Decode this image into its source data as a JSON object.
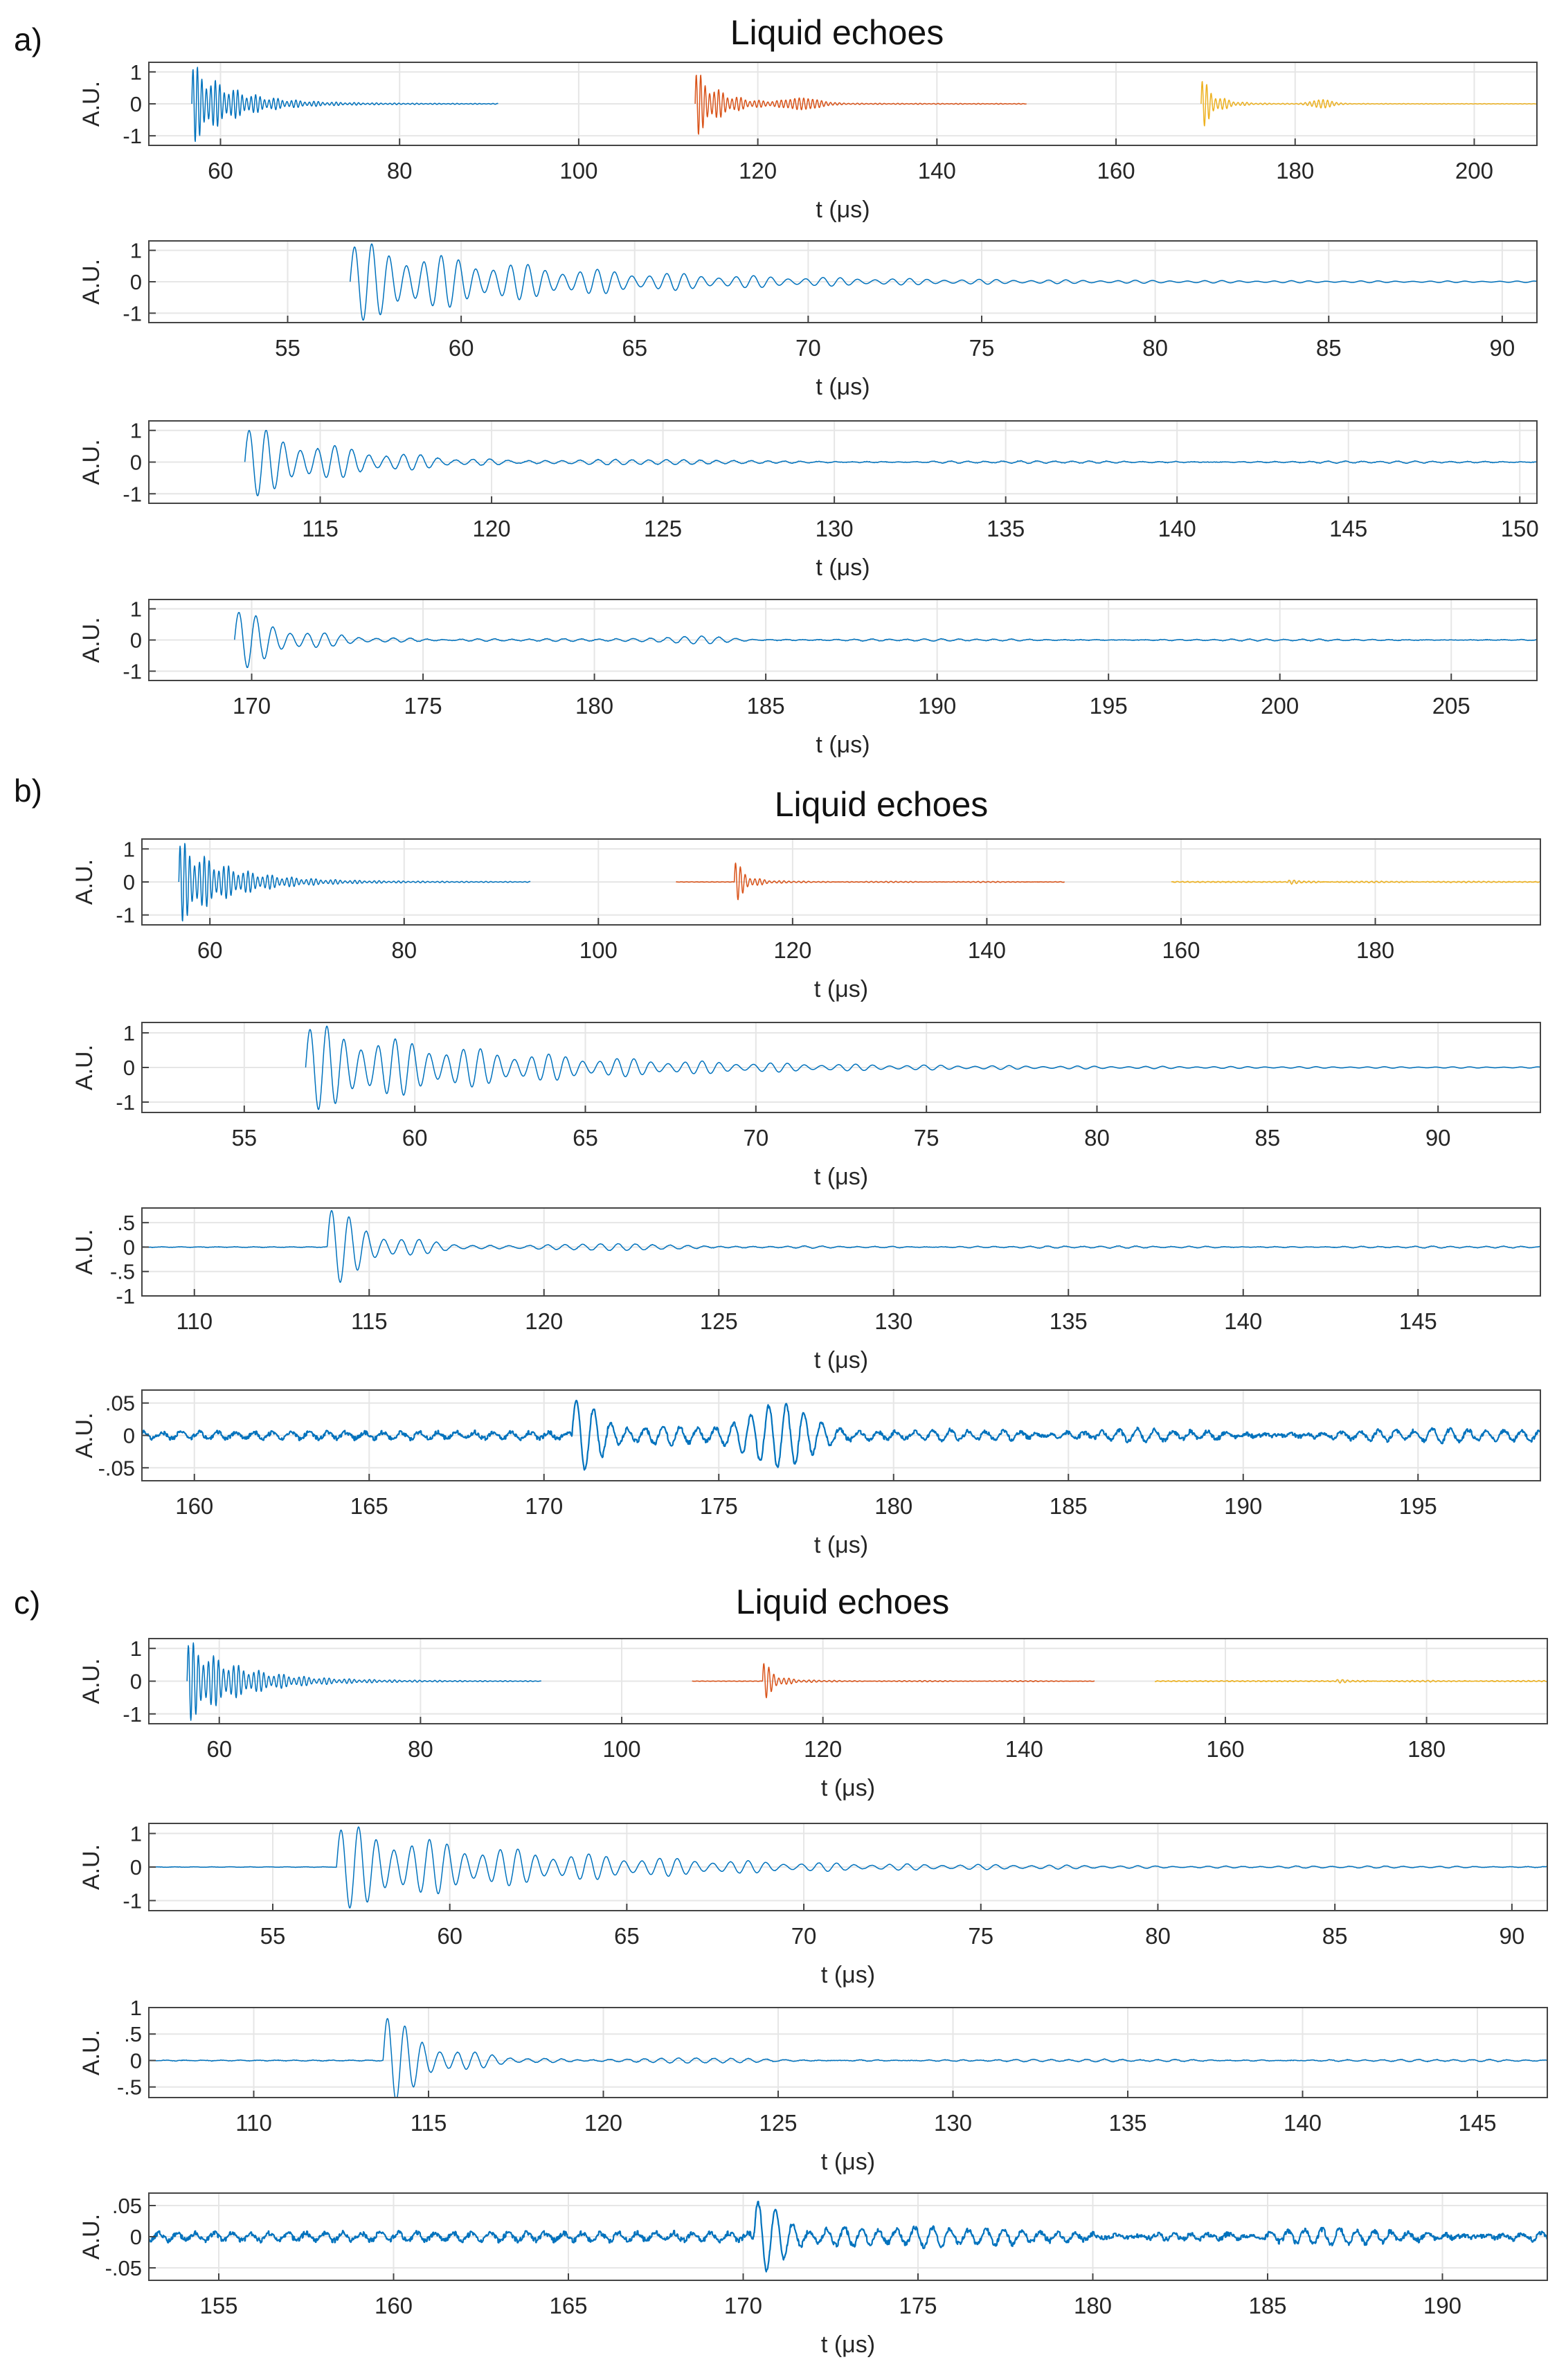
{
  "figure": {
    "panels": [
      {
        "label": "a)",
        "title": "Liquid echoes"
      },
      {
        "label": "b)",
        "title": "Liquid echoes"
      },
      {
        "label": "c)",
        "title": "Liquid echoes"
      }
    ]
  },
  "colors": {
    "echo1": "#0072BD",
    "echo2": "#D95319",
    "echo3": "#EDB120",
    "axis": "#262626",
    "grid": "#e6e6e6",
    "frame": "#444444"
  },
  "chart_data": [
    {
      "type": "line",
      "panel": "a",
      "xlabel": "t (μs)",
      "ylabel": "A.U.",
      "xlim": [
        52,
        207
      ],
      "ylim": [
        -1.3,
        1.3
      ],
      "xticks": [
        60,
        80,
        100,
        120,
        140,
        160,
        180,
        200
      ],
      "yticks": [
        1,
        0,
        -1
      ],
      "series": [
        {
          "color": "echo1",
          "start": 56.8,
          "end": 91,
          "amp": 1.3,
          "decay": 4.5,
          "freq": 2.0,
          "floor": 0.03,
          "noise": 0.0,
          "bursts": [],
          "width": 1.5
        },
        {
          "color": "echo2",
          "start": 113,
          "end": 150,
          "amp": 1.1,
          "decay": 2.8,
          "freq": 2.0,
          "floor": 0.03,
          "noise": 0.0,
          "bursts": [
            {
              "c": 125,
              "a": 0.15,
              "w": 2.5
            }
          ],
          "width": 1.5
        },
        {
          "color": "echo3",
          "start": 169.5,
          "end": 207,
          "amp": 0.9,
          "decay": 1.5,
          "freq": 2.0,
          "floor": 0.02,
          "noise": 0.0,
          "bursts": [
            {
              "c": 183,
              "a": 0.12,
              "w": 1.5
            }
          ],
          "width": 1.5
        }
      ]
    },
    {
      "type": "line",
      "panel": "a",
      "xlabel": "t (μs)",
      "ylabel": "A.U.",
      "xlim": [
        51,
        91
      ],
      "ylim": [
        -1.3,
        1.3
      ],
      "xticks": [
        55,
        60,
        65,
        70,
        75,
        80,
        85,
        90
      ],
      "yticks": [
        1,
        0,
        -1
      ],
      "series": [
        {
          "color": "echo1",
          "start": 56.8,
          "end": 91,
          "amp": 1.3,
          "decay": 5.5,
          "freq": 2.0,
          "floor": 0.05,
          "noise": 0.0,
          "bursts": [],
          "width": 1.5
        }
      ]
    },
    {
      "type": "line",
      "panel": "a",
      "xlabel": "t (μs)",
      "ylabel": "A.U.",
      "xlim": [
        110,
        150.5
      ],
      "ylim": [
        -1.3,
        1.3
      ],
      "xticks": [
        115,
        120,
        125,
        130,
        135,
        140,
        145,
        150
      ],
      "yticks": [
        1,
        0,
        -1
      ],
      "series": [
        {
          "color": "echo1",
          "start": 112.8,
          "end": 150.5,
          "amp": 1.2,
          "decay": 2.8,
          "freq": 2.0,
          "floor": 0.05,
          "noise": 0.02,
          "bursts": [
            {
              "c": 124,
              "a": 0.12,
              "w": 4
            }
          ],
          "width": 1.5
        }
      ]
    },
    {
      "type": "line",
      "panel": "a",
      "xlabel": "t (μs)",
      "ylabel": "A.U.",
      "xlim": [
        167,
        207.5
      ],
      "ylim": [
        -1.3,
        1.3
      ],
      "xticks": [
        170,
        175,
        180,
        185,
        190,
        195,
        200,
        205
      ],
      "yticks": [
        1,
        0,
        -1
      ],
      "series": [
        {
          "color": "echo1",
          "start": 169.5,
          "end": 207.5,
          "amp": 1.1,
          "decay": 1.5,
          "freq": 2.0,
          "floor": 0.04,
          "noise": 0.02,
          "bursts": [
            {
              "c": 183,
              "a": 0.1,
              "w": 1.2
            }
          ],
          "width": 1.5
        }
      ]
    },
    {
      "type": "line",
      "panel": "b",
      "xlabel": "t (μs)",
      "ylabel": "A.U.",
      "xlim": [
        53,
        197
      ],
      "ylim": [
        -1.3,
        1.3
      ],
      "xticks": [
        60,
        80,
        100,
        120,
        140,
        160,
        180
      ],
      "yticks": [
        1,
        0,
        -1
      ],
      "series": [
        {
          "color": "echo1",
          "start": 56.8,
          "end": 93,
          "amp": 1.3,
          "decay": 5.0,
          "freq": 2.0,
          "floor": 0.03,
          "noise": 0.0,
          "bursts": [],
          "width": 1.5
        },
        {
          "color": "echo2",
          "start": 108,
          "end": 148,
          "amp": 0.75,
          "decay": 1.2,
          "freq": 2.0,
          "floor": 0.02,
          "noise": 0.01,
          "bursts": [],
          "width": 1.5,
          "onset": 114
        },
        {
          "color": "echo3",
          "start": 159,
          "end": 197,
          "amp": 0.05,
          "decay": 3,
          "freq": 2.0,
          "floor": 0.01,
          "noise": 0.02,
          "bursts": [],
          "width": 1.5,
          "onset": 171
        }
      ]
    },
    {
      "type": "line",
      "panel": "b",
      "xlabel": "t (μs)",
      "ylabel": "A.U.",
      "xlim": [
        52,
        93
      ],
      "ylim": [
        -1.3,
        1.3
      ],
      "xticks": [
        55,
        60,
        65,
        70,
        75,
        80,
        85,
        90
      ],
      "yticks": [
        1,
        0,
        -1
      ],
      "series": [
        {
          "color": "echo1",
          "start": 56.8,
          "end": 93,
          "amp": 1.3,
          "decay": 5.5,
          "freq": 2.0,
          "floor": 0.04,
          "noise": 0.0,
          "bursts": [],
          "width": 1.5
        }
      ]
    },
    {
      "type": "line",
      "panel": "b",
      "xlabel": "t (μs)",
      "ylabel": "A.U.",
      "xlim": [
        108.5,
        148.5
      ],
      "ylim": [
        -1,
        0.8
      ],
      "xticks": [
        110,
        115,
        120,
        125,
        130,
        135,
        140,
        145
      ],
      "yticks": [
        0.5,
        0,
        -0.5,
        -1
      ],
      "series": [
        {
          "color": "echo1",
          "start": 108.5,
          "end": 148.5,
          "amp": 0.95,
          "decay": 1.3,
          "freq": 2.0,
          "floor": 0.03,
          "noise": 0.01,
          "bursts": [
            {
              "c": 122,
              "a": 0.08,
              "w": 3
            }
          ],
          "width": 1.5,
          "onset": 113.8
        }
      ]
    },
    {
      "type": "line",
      "panel": "b",
      "xlabel": "t (μs)",
      "ylabel": "A.U.",
      "xlim": [
        158.5,
        198.5
      ],
      "ylim": [
        -0.07,
        0.07
      ],
      "xticks": [
        160,
        165,
        170,
        175,
        180,
        185,
        190,
        195
      ],
      "yticks": [
        0.05,
        0,
        -0.05
      ],
      "series": [
        {
          "color": "echo1",
          "start": 158.5,
          "end": 198.5,
          "amp": 0.07,
          "decay": 1.0,
          "freq": 2.0,
          "floor": 0.01,
          "noise": 0.008,
          "bursts": [
            {
              "c": 176.8,
              "a": 0.04,
              "w": 1.0
            },
            {
              "c": 183,
              "a": 0.012,
              "w": 3
            }
          ],
          "width": 2.2,
          "onset": 170.8
        }
      ]
    },
    {
      "type": "line",
      "panel": "c",
      "xlabel": "t (μs)",
      "ylabel": "A.U.",
      "xlim": [
        53,
        192
      ],
      "ylim": [
        -1.3,
        1.3
      ],
      "xticks": [
        60,
        80,
        100,
        120,
        140,
        160,
        180
      ],
      "yticks": [
        1,
        0,
        -1
      ],
      "series": [
        {
          "color": "echo1",
          "start": 56.8,
          "end": 92,
          "amp": 1.3,
          "decay": 5.0,
          "freq": 2.0,
          "floor": 0.03,
          "noise": 0.0,
          "bursts": [],
          "width": 1.5
        },
        {
          "color": "echo2",
          "start": 107,
          "end": 147,
          "amp": 0.7,
          "decay": 1.2,
          "freq": 2.0,
          "floor": 0.02,
          "noise": 0.01,
          "bursts": [],
          "width": 1.5,
          "onset": 114
        },
        {
          "color": "echo3",
          "start": 153,
          "end": 192,
          "amp": 0.04,
          "decay": 3,
          "freq": 2.0,
          "floor": 0.01,
          "noise": 0.02,
          "bursts": [],
          "width": 1.5,
          "onset": 171
        }
      ]
    },
    {
      "type": "line",
      "panel": "c",
      "xlabel": "t (μs)",
      "ylabel": "A.U.",
      "xlim": [
        51.5,
        91
      ],
      "ylim": [
        -1.3,
        1.3
      ],
      "xticks": [
        55,
        60,
        65,
        70,
        75,
        80,
        85,
        90
      ],
      "yticks": [
        1,
        0,
        -1
      ],
      "series": [
        {
          "color": "echo1",
          "start": 51.5,
          "end": 91,
          "amp": 1.3,
          "decay": 5.5,
          "freq": 2.0,
          "floor": 0.04,
          "noise": 0.01,
          "bursts": [],
          "width": 1.5,
          "onset": 56.8
        }
      ]
    },
    {
      "type": "line",
      "panel": "c",
      "xlabel": "t (μs)",
      "ylabel": "A.U.",
      "xlim": [
        107,
        147
      ],
      "ylim": [
        -0.7,
        1.0
      ],
      "xticks": [
        110,
        115,
        120,
        125,
        130,
        135,
        140,
        145
      ],
      "yticks": [
        1,
        0.5,
        0,
        -0.5
      ],
      "series": [
        {
          "color": "echo1",
          "start": 107,
          "end": 147,
          "amp": 1.0,
          "decay": 1.3,
          "freq": 2.0,
          "floor": 0.03,
          "noise": 0.012,
          "bursts": [
            {
              "c": 123,
              "a": 0.06,
              "w": 3
            }
          ],
          "width": 1.5,
          "onset": 113.7
        }
      ]
    },
    {
      "type": "line",
      "panel": "c",
      "xlabel": "t (μs)",
      "ylabel": "A.U.",
      "xlim": [
        153,
        193
      ],
      "ylim": [
        -0.07,
        0.07
      ],
      "xticks": [
        155,
        160,
        165,
        170,
        175,
        180,
        185,
        190
      ],
      "yticks": [
        0.05,
        0,
        -0.05
      ],
      "series": [
        {
          "color": "echo1",
          "start": 153,
          "end": 193,
          "amp": 0.07,
          "decay": 1.2,
          "freq": 2.0,
          "floor": 0.01,
          "noise": 0.01,
          "bursts": [
            {
              "c": 186,
              "a": 0.018,
              "w": 2
            }
          ],
          "width": 2.2,
          "onset": 170.3
        }
      ]
    }
  ]
}
